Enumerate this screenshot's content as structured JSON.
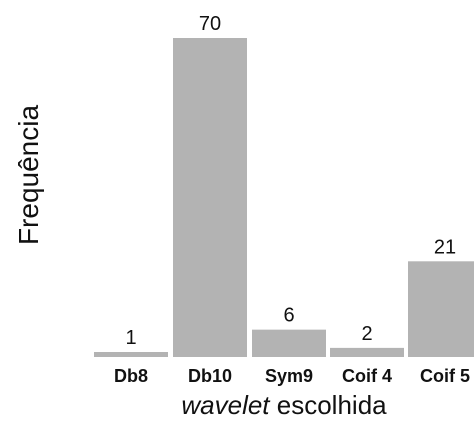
{
  "chart_data": {
    "type": "bar",
    "categories": [
      "Db8",
      "Db10",
      "Sym9",
      "Coif 4",
      "Coif 5"
    ],
    "values": [
      1,
      70,
      6,
      2,
      21
    ],
    "data_labels": [
      "1",
      "70",
      "6",
      "2",
      "21"
    ],
    "title": "",
    "xlabel_italic": "wavelet",
    "xlabel_rest": " escolhida",
    "ylabel": "Frequência",
    "ylim": [
      0,
      70
    ],
    "grid": false,
    "legend": "none",
    "bar_color": "#b3b3b3"
  }
}
